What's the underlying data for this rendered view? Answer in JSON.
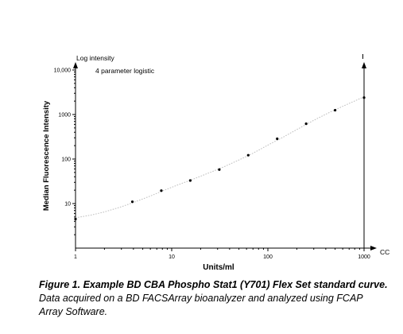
{
  "chart_data": {
    "type": "scatter",
    "title": "",
    "xlabel": "Units/ml",
    "ylabel": "Median Fluorescence Intensity",
    "x_scale": "log",
    "y_scale": "log",
    "xlim": [
      1,
      1000
    ],
    "ylim": [
      1,
      10000
    ],
    "x_ticks": [
      "1",
      "10",
      "100",
      "1000"
    ],
    "y_ticks": [
      "10",
      "100",
      "1000",
      "10,000"
    ],
    "annotations": {
      "y_axis_top": "Log intensity",
      "fit": "4 parameter logistic",
      "x_axis_end": "CC"
    },
    "points": [
      {
        "x": 1,
        "y": 4.5
      },
      {
        "x": 3.9,
        "y": 11
      },
      {
        "x": 7.8,
        "y": 19.5
      },
      {
        "x": 15.6,
        "y": 33
      },
      {
        "x": 31.25,
        "y": 58
      },
      {
        "x": 62.5,
        "y": 122
      },
      {
        "x": 125,
        "y": 285
      },
      {
        "x": 250,
        "y": 620
      },
      {
        "x": 500,
        "y": 1250
      },
      {
        "x": 1000,
        "y": 2400
      }
    ],
    "fit_curve": [
      {
        "x": 1,
        "y": 4.8
      },
      {
        "x": 1.5,
        "y": 5.6
      },
      {
        "x": 2,
        "y": 6.5
      },
      {
        "x": 3,
        "y": 8.5
      },
      {
        "x": 4,
        "y": 10.6
      },
      {
        "x": 6,
        "y": 14.8
      },
      {
        "x": 8,
        "y": 19.2
      },
      {
        "x": 12,
        "y": 27
      },
      {
        "x": 16,
        "y": 34
      },
      {
        "x": 25,
        "y": 50
      },
      {
        "x": 35,
        "y": 67
      },
      {
        "x": 50,
        "y": 95
      },
      {
        "x": 70,
        "y": 135
      },
      {
        "x": 100,
        "y": 205
      },
      {
        "x": 140,
        "y": 300
      },
      {
        "x": 200,
        "y": 460
      },
      {
        "x": 300,
        "y": 740
      },
      {
        "x": 450,
        "y": 1150
      },
      {
        "x": 650,
        "y": 1650
      },
      {
        "x": 1000,
        "y": 2500
      }
    ],
    "grid": false,
    "legend": "none"
  },
  "caption": {
    "lead": "Figure 1. Example BD CBA Phospho Stat1 (Y701) Flex Set standard curve.",
    "body": " Data acquired on a BD FACSArray bioanalyzer and analyzed using FCAP Array Software."
  }
}
